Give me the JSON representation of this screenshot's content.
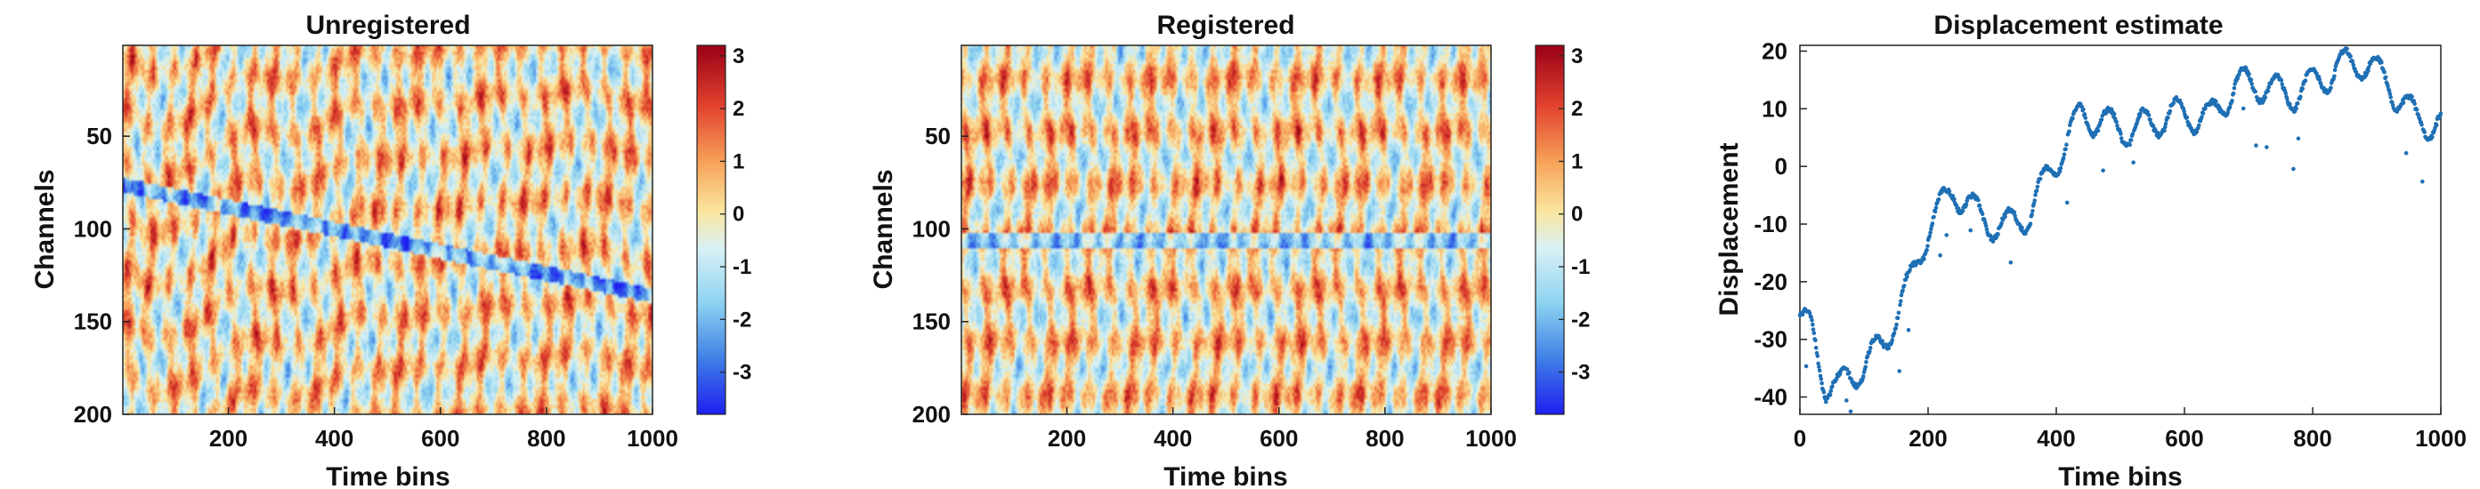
{
  "chart_data": [
    {
      "type": "heatmap",
      "title": "Unregistered",
      "xlabel": "Time bins",
      "ylabel": "Channels",
      "xlim": [
        1,
        1000
      ],
      "ylim": [
        1,
        200
      ],
      "y_reversed": true,
      "xticks": [
        200,
        400,
        600,
        800,
        1000
      ],
      "yticks": [
        50,
        100,
        150,
        200
      ],
      "colorbar": {
        "ticks": [
          3,
          2,
          1,
          0,
          -1,
          -2,
          -3
        ],
        "clim": [
          -3.8,
          3.2
        ],
        "colormap": "jet-like red-yellow-blue"
      }
    },
    {
      "type": "heatmap",
      "title": "Registered",
      "xlabel": "Time bins",
      "ylabel": "Channels",
      "xlim": [
        1,
        1000
      ],
      "ylim": [
        1,
        200
      ],
      "y_reversed": true,
      "xticks": [
        200,
        400,
        600,
        800,
        1000
      ],
      "yticks": [
        50,
        100,
        150,
        200
      ],
      "colorbar": {
        "ticks": [
          3,
          2,
          1,
          0,
          -1,
          -2,
          -3
        ],
        "clim": [
          -3.8,
          3.2
        ],
        "colormap": "jet-like red-yellow-blue"
      }
    },
    {
      "type": "scatter",
      "title": "Displacement estimate",
      "xlabel": "Time bins",
      "ylabel": "Displacement",
      "xlim": [
        0,
        1000
      ],
      "ylim": [
        -43,
        21
      ],
      "xticks": [
        0,
        200,
        400,
        600,
        800,
        1000
      ],
      "yticks": [
        20,
        10,
        0,
        -10,
        -20,
        -30,
        -40
      ],
      "color": "#1f6fb4",
      "trend": {
        "x": [
          0,
          20,
          40,
          60,
          80,
          100,
          130,
          170,
          200,
          240,
          280,
          320,
          360,
          400,
          440,
          480,
          520,
          560,
          600,
          640,
          680,
          720,
          760,
          800,
          840,
          880,
          920,
          960,
          1000
        ],
        "y": [
          -26,
          -28,
          -37,
          -38,
          -35,
          -34,
          -30,
          -20,
          -10,
          -3,
          -8,
          -10,
          -7,
          2,
          10,
          8,
          7,
          9,
          10,
          9,
          15,
          15,
          13,
          15,
          18,
          19,
          15,
          9,
          8
        ]
      }
    }
  ]
}
